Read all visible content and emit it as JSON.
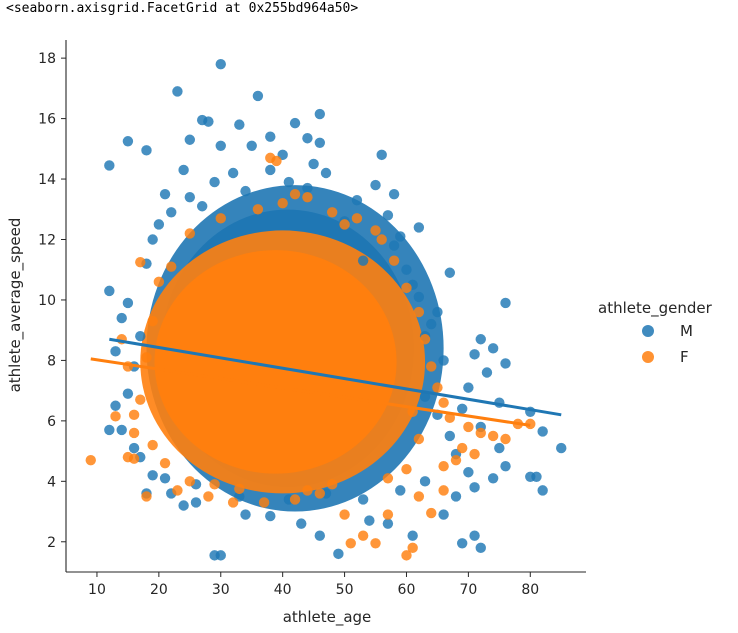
{
  "output": {
    "repr": "<seaborn.axisgrid.FacetGrid at 0x255bd964a50>"
  },
  "chart_data": {
    "type": "scatter",
    "title": "",
    "xlabel": "athlete_age",
    "ylabel": "athlete_average_speed",
    "xlim": [
      5,
      89
    ],
    "ylim": [
      1.0,
      18.6
    ],
    "xticks": [
      10,
      20,
      30,
      40,
      50,
      60,
      70,
      80
    ],
    "yticks": [
      2,
      4,
      6,
      8,
      10,
      12,
      14,
      16,
      18
    ],
    "legend": {
      "title": "athlete_gender",
      "position": "right"
    },
    "grid": false,
    "series": [
      {
        "name": "M",
        "color": "#1f77b4",
        "regression": {
          "x": [
            12,
            85
          ],
          "y": [
            8.7,
            6.2
          ]
        },
        "cluster": {
          "x_range": [
            18,
            66
          ],
          "y_range": [
            3.0,
            13.8
          ]
        },
        "points": [
          [
            12,
            14.45
          ],
          [
            15,
            15.25
          ],
          [
            18,
            14.95
          ],
          [
            23,
            16.9
          ],
          [
            25,
            15.3
          ],
          [
            27,
            15.95
          ],
          [
            28,
            15.9
          ],
          [
            30,
            17.8
          ],
          [
            30,
            15.1
          ],
          [
            33,
            15.8
          ],
          [
            36,
            16.75
          ],
          [
            35,
            15.1
          ],
          [
            38,
            15.4
          ],
          [
            40,
            14.8
          ],
          [
            42,
            15.85
          ],
          [
            44,
            15.35
          ],
          [
            46,
            16.15
          ],
          [
            46,
            15.2
          ],
          [
            45,
            14.5
          ],
          [
            44,
            13.7
          ],
          [
            47,
            14.2
          ],
          [
            52,
            13.3
          ],
          [
            55,
            13.8
          ],
          [
            56,
            14.8
          ],
          [
            58,
            13.5
          ],
          [
            62,
            12.4
          ],
          [
            21,
            13.5
          ],
          [
            20,
            12.5
          ],
          [
            24,
            14.3
          ],
          [
            27,
            13.1
          ],
          [
            32,
            14.2
          ],
          [
            12,
            10.3
          ],
          [
            14,
            9.4
          ],
          [
            13,
            8.3
          ],
          [
            15,
            6.9
          ],
          [
            13,
            6.5
          ],
          [
            14,
            5.7
          ],
          [
            12,
            5.7
          ],
          [
            16,
            5.1
          ],
          [
            17,
            4.8
          ],
          [
            19,
            4.2
          ],
          [
            22,
            3.6
          ],
          [
            24,
            3.2
          ],
          [
            26,
            3.9
          ],
          [
            29,
            1.55
          ],
          [
            30,
            1.55
          ],
          [
            34,
            2.9
          ],
          [
            38,
            2.85
          ],
          [
            43,
            2.6
          ],
          [
            46,
            2.2
          ],
          [
            49,
            1.6
          ],
          [
            54,
            2.7
          ],
          [
            57,
            2.6
          ],
          [
            61,
            2.2
          ],
          [
            66,
            2.9
          ],
          [
            69,
            1.95
          ],
          [
            71,
            2.2
          ],
          [
            72,
            1.8
          ],
          [
            68,
            3.5
          ],
          [
            71,
            3.8
          ],
          [
            74,
            4.1
          ],
          [
            76,
            4.5
          ],
          [
            80,
            4.15
          ],
          [
            81,
            4.15
          ],
          [
            82,
            3.7
          ],
          [
            85,
            5.1
          ],
          [
            82,
            5.65
          ],
          [
            80,
            6.3
          ],
          [
            76,
            7.9
          ],
          [
            75,
            6.6
          ],
          [
            76,
            9.9
          ],
          [
            72,
            8.7
          ],
          [
            74,
            8.4
          ],
          [
            71,
            8.2
          ],
          [
            73,
            7.6
          ],
          [
            75,
            5.1
          ],
          [
            72,
            5.8
          ],
          [
            68,
            4.9
          ],
          [
            70,
            4.3
          ],
          [
            67,
            10.9
          ],
          [
            65,
            9.6
          ],
          [
            63,
            8.8
          ],
          [
            64,
            9.2
          ],
          [
            62,
            10.1
          ],
          [
            66,
            8.0
          ],
          [
            60,
            11.0
          ],
          [
            58,
            11.8
          ],
          [
            59,
            12.1
          ],
          [
            57,
            12.8
          ],
          [
            16,
            7.8
          ],
          [
            17,
            8.8
          ],
          [
            15,
            9.9
          ],
          [
            18,
            11.2
          ],
          [
            19,
            12.0
          ],
          [
            22,
            12.9
          ],
          [
            25,
            13.4
          ],
          [
            29,
            13.9
          ],
          [
            34,
            13.6
          ],
          [
            38,
            14.3
          ],
          [
            41,
            13.9
          ],
          [
            50,
            12.6
          ],
          [
            53,
            11.3
          ],
          [
            61,
            10.5
          ],
          [
            63,
            6.8
          ],
          [
            65,
            6.2
          ],
          [
            67,
            5.5
          ],
          [
            69,
            6.4
          ],
          [
            70,
            7.1
          ],
          [
            18,
            3.6
          ],
          [
            21,
            4.1
          ],
          [
            26,
            3.3
          ],
          [
            33,
            3.5
          ],
          [
            41,
            3.4
          ],
          [
            47,
            3.6
          ],
          [
            53,
            3.4
          ],
          [
            59,
            3.7
          ],
          [
            63,
            4.0
          ]
        ]
      },
      {
        "name": "F",
        "color": "#ff7f0e",
        "regression": {
          "x": [
            9,
            80
          ],
          "y": [
            8.05,
            5.85
          ]
        },
        "cluster": {
          "x_range": [
            17,
            63
          ],
          "y_range": [
            3.6,
            12.3
          ]
        },
        "points": [
          [
            9,
            4.7
          ],
          [
            13,
            6.15
          ],
          [
            15,
            4.8
          ],
          [
            16,
            4.75
          ],
          [
            18,
            3.5
          ],
          [
            17,
            11.25
          ],
          [
            14,
            8.7
          ],
          [
            15,
            7.8
          ],
          [
            16,
            5.6
          ],
          [
            23,
            3.7
          ],
          [
            28,
            3.5
          ],
          [
            32,
            3.3
          ],
          [
            37,
            3.3
          ],
          [
            42,
            3.4
          ],
          [
            46,
            3.6
          ],
          [
            50,
            2.9
          ],
          [
            53,
            2.2
          ],
          [
            51,
            1.95
          ],
          [
            55,
            1.95
          ],
          [
            60,
            1.55
          ],
          [
            61,
            1.8
          ],
          [
            57,
            2.9
          ],
          [
            64,
            2.95
          ],
          [
            66,
            3.7
          ],
          [
            62,
            3.5
          ],
          [
            38,
            14.7
          ],
          [
            39,
            14.6
          ],
          [
            42,
            13.5
          ],
          [
            44,
            13.4
          ],
          [
            48,
            12.9
          ],
          [
            50,
            12.5
          ],
          [
            52,
            12.7
          ],
          [
            55,
            12.3
          ],
          [
            56,
            12.0
          ],
          [
            36,
            13.0
          ],
          [
            40,
            13.2
          ],
          [
            30,
            12.7
          ],
          [
            25,
            12.2
          ],
          [
            22,
            11.1
          ],
          [
            20,
            10.6
          ],
          [
            58,
            11.3
          ],
          [
            60,
            10.4
          ],
          [
            62,
            9.6
          ],
          [
            63,
            8.7
          ],
          [
            64,
            7.8
          ],
          [
            65,
            7.1
          ],
          [
            66,
            6.6
          ],
          [
            67,
            6.1
          ],
          [
            70,
            5.8
          ],
          [
            72,
            5.6
          ],
          [
            74,
            5.5
          ],
          [
            76,
            5.4
          ],
          [
            78,
            5.9
          ],
          [
            80,
            5.9
          ],
          [
            69,
            5.1
          ],
          [
            68,
            4.7
          ],
          [
            71,
            4.9
          ],
          [
            66,
            4.5
          ],
          [
            19,
            9.3
          ],
          [
            18,
            8.1
          ],
          [
            17,
            6.7
          ],
          [
            16,
            6.2
          ],
          [
            19,
            5.2
          ],
          [
            21,
            4.6
          ],
          [
            25,
            4.0
          ],
          [
            29,
            3.9
          ],
          [
            33,
            3.75
          ],
          [
            44,
            3.7
          ],
          [
            48,
            3.9
          ],
          [
            57,
            4.1
          ],
          [
            60,
            4.4
          ],
          [
            62,
            5.4
          ],
          [
            61,
            6.3
          ]
        ]
      }
    ]
  }
}
